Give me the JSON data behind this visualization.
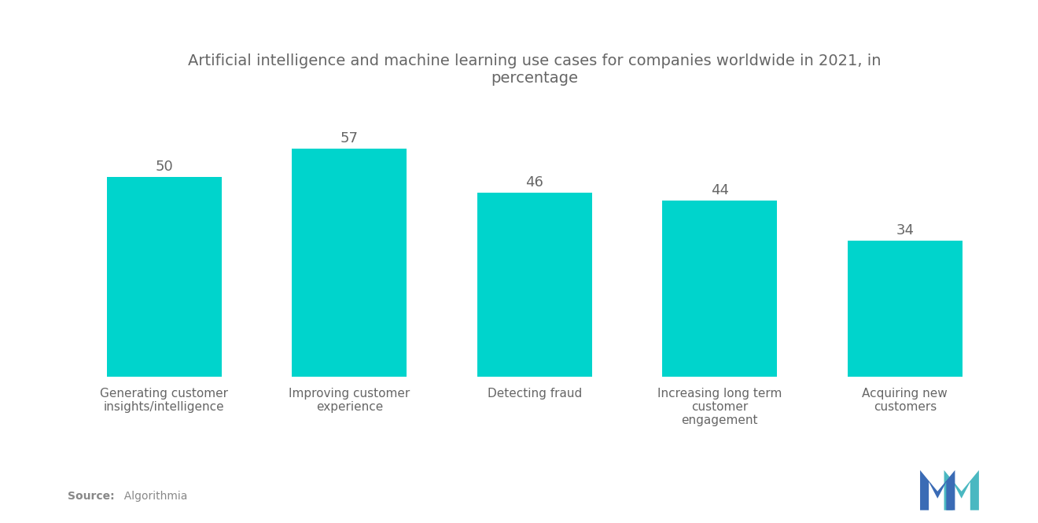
{
  "title": "Artificial intelligence and machine learning use cases for companies worldwide in 2021, in\npercentage",
  "categories": [
    "Generating customer\ninsights/intelligence",
    "Improving customer\nexperience",
    "Detecting fraud",
    "Increasing long term\ncustomer\nengagement",
    "Acquiring new\ncustomers"
  ],
  "values": [
    50,
    57,
    46,
    44,
    34
  ],
  "bar_color": "#00D4CC",
  "background_color": "#ffffff",
  "title_fontsize": 14,
  "label_fontsize": 11,
  "value_fontsize": 13,
  "source_bold": "Source:",
  "source_normal": "  Algorithmia",
  "ylim": [
    0,
    68
  ],
  "title_color": "#666666",
  "label_color": "#666666",
  "value_color": "#666666",
  "source_color": "#888888",
  "logo_blue": "#3a6bb5",
  "logo_teal": "#4ab8c1"
}
